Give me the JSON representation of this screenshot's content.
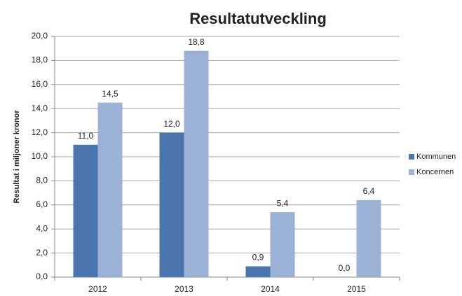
{
  "chart_data": {
    "type": "bar",
    "title": "Resultatutveckling",
    "ylabel": "Resultat i miljoner kronor",
    "categories": [
      "2012",
      "2013",
      "2014",
      "2015"
    ],
    "series": [
      {
        "name": "Kommunen",
        "color": "#4a76ad",
        "values": [
          11.0,
          12.0,
          0.9,
          0.0
        ],
        "value_labels": [
          "11,0",
          "12,0",
          "0,9",
          "0,0"
        ]
      },
      {
        "name": "Koncernen",
        "color": "#9bb1d6",
        "values": [
          14.5,
          18.8,
          5.4,
          6.4
        ],
        "value_labels": [
          "14,5",
          "18,8",
          "5,4",
          "6,4"
        ]
      }
    ],
    "ylim": [
      0,
      20
    ],
    "yticks": [
      {
        "value": 0,
        "label": "0,0"
      },
      {
        "value": 2,
        "label": "2,0"
      },
      {
        "value": 4,
        "label": "4,0"
      },
      {
        "value": 6,
        "label": "6,0"
      },
      {
        "value": 8,
        "label": "8,0"
      },
      {
        "value": 10,
        "label": "10,0"
      },
      {
        "value": 12,
        "label": "12,0"
      },
      {
        "value": 14,
        "label": "14,0"
      },
      {
        "value": 16,
        "label": "16,0"
      },
      {
        "value": 18,
        "label": "18,0"
      },
      {
        "value": 20,
        "label": "20,0"
      }
    ],
    "grid": true,
    "legend": "right"
  }
}
